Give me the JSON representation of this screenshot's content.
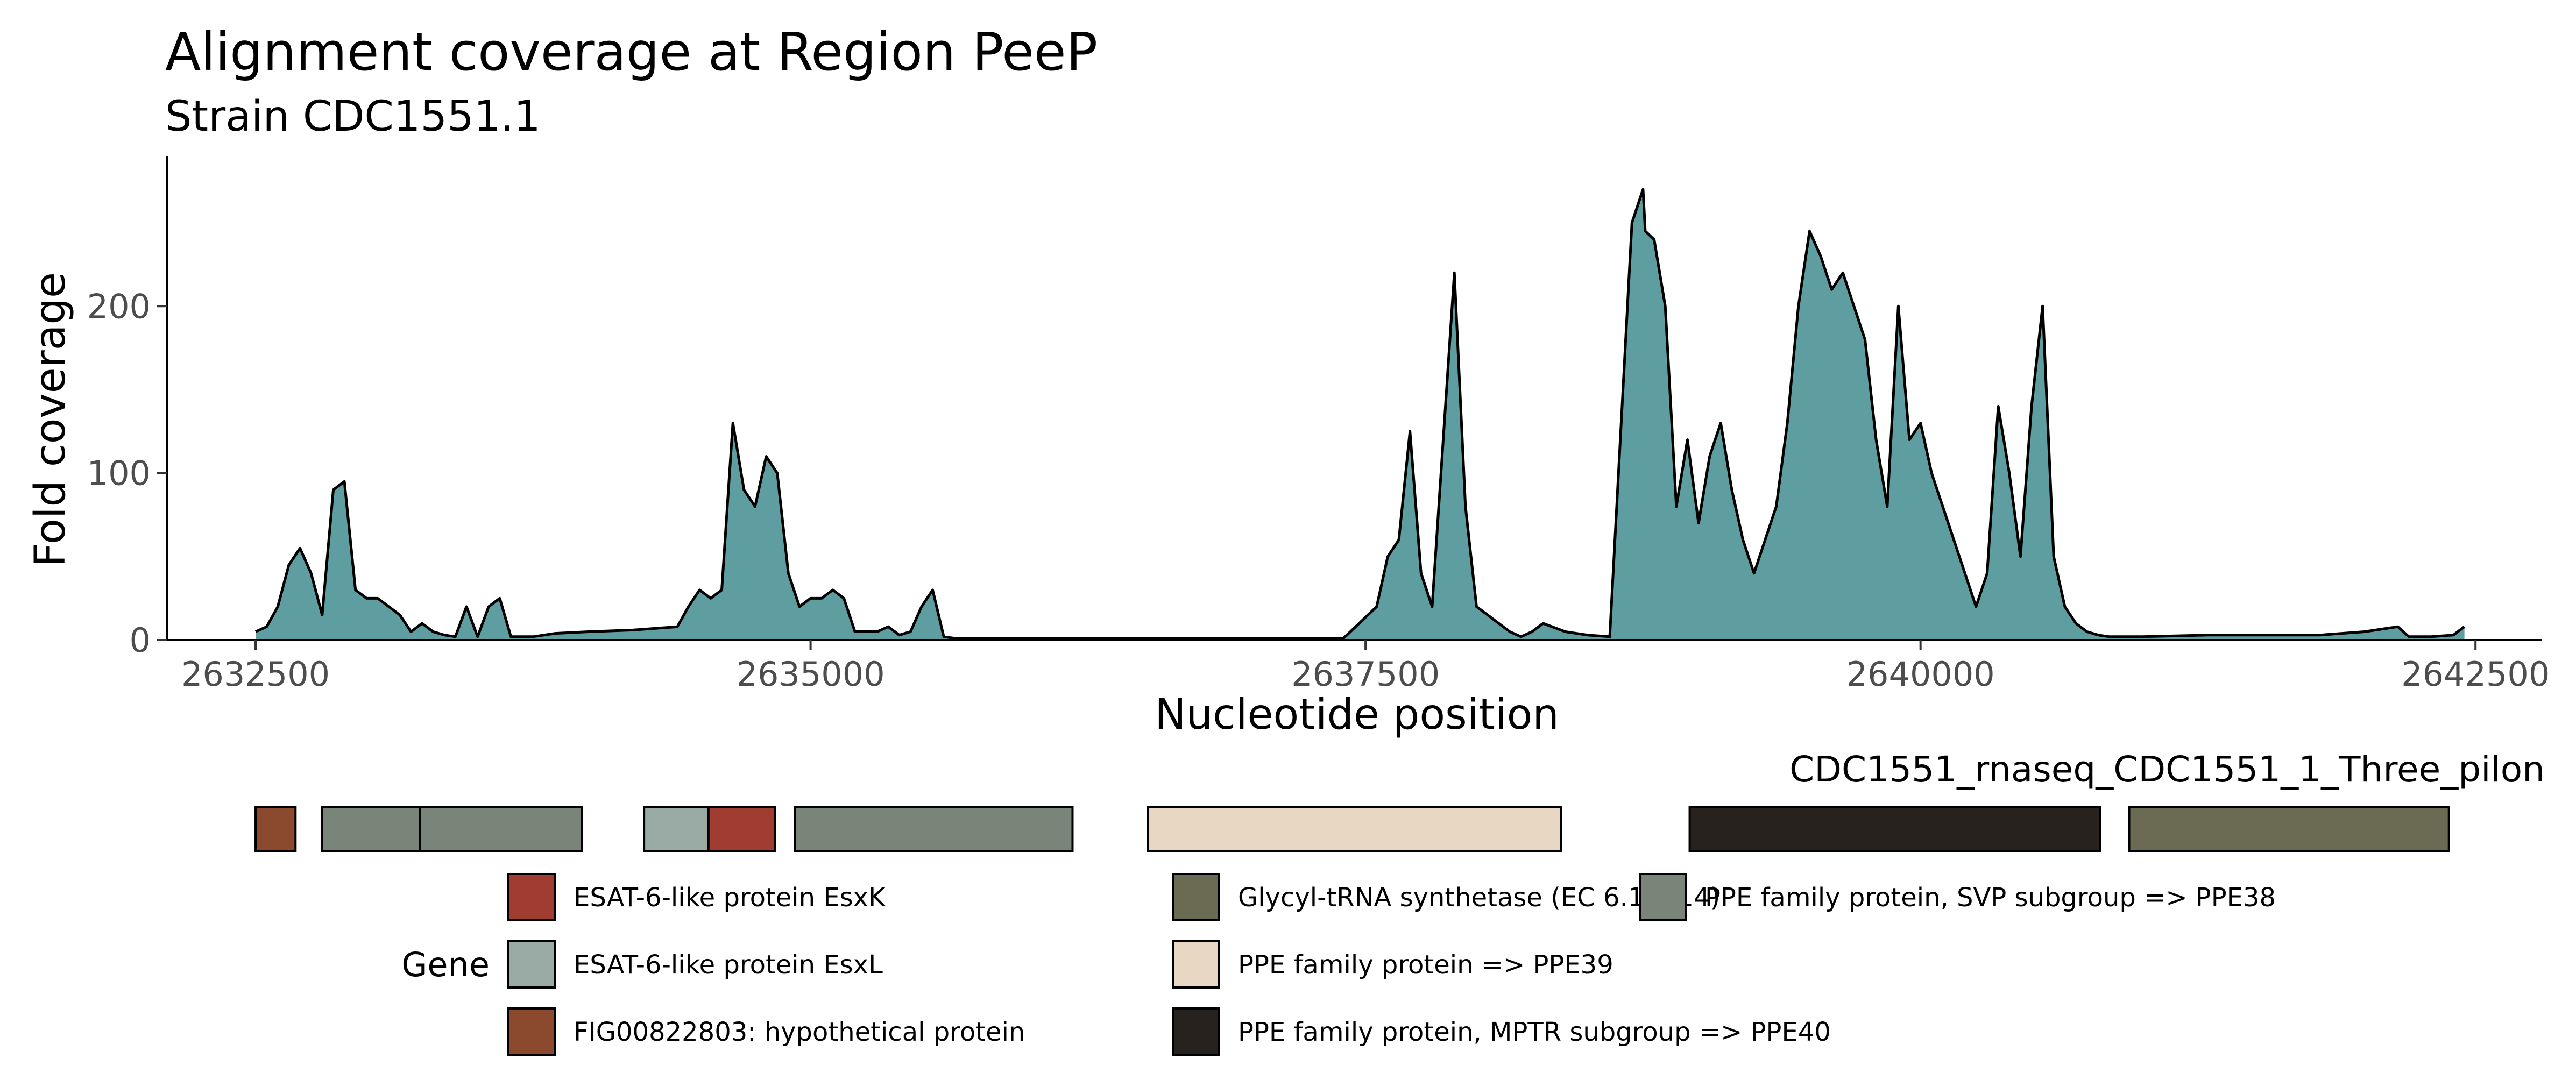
{
  "chart_data": {
    "type": "area",
    "title": "Alignment coverage at Region PeeP",
    "subtitle": "Strain CDC1551.1",
    "xlabel": "Nucleotide position",
    "ylabel": "Fold coverage",
    "xlim": [
      2632100,
      2642800
    ],
    "ylim": [
      0,
      290
    ],
    "x_ticks": [
      2632500,
      2635000,
      2637500,
      2640000,
      2642500
    ],
    "x_tick_labels": [
      "2632500",
      "2635000",
      "2637500",
      "2640000",
      "2642500"
    ],
    "y_ticks": [
      0,
      100,
      200
    ],
    "y_tick_labels": [
      "0",
      "100",
      "200"
    ],
    "grid": false,
    "fill_color": "#5f9ea0",
    "line_color": "#000000",
    "series": [
      {
        "x": [
          2632500,
          2632550,
          2632600,
          2632650,
          2632700,
          2632750,
          2632800,
          2632850,
          2632900,
          2632950,
          2633000,
          2633050,
          2633100,
          2633150,
          2633200,
          2633250,
          2633300,
          2633350,
          2633400,
          2633450,
          2633500,
          2633550,
          2633600,
          2633650,
          2633700,
          2633750,
          2633800,
          2633850,
          2634000,
          2634200,
          2634400,
          2634450,
          2634500,
          2634550,
          2634600,
          2634650,
          2634700,
          2634750,
          2634800,
          2634850,
          2634900,
          2634950,
          2635000,
          2635050,
          2635100,
          2635150,
          2635200,
          2635250,
          2635300,
          2635350,
          2635400,
          2635450,
          2635500,
          2635550,
          2635600,
          2635650,
          2635700,
          2635750,
          2635800,
          2635850,
          2636000,
          2636500,
          2637000,
          2637200,
          2637400,
          2637550,
          2637600,
          2637650,
          2637700,
          2637750,
          2637800,
          2637850,
          2637900,
          2637950,
          2638000,
          2638050,
          2638100,
          2638150,
          2638200,
          2638250,
          2638300,
          2638400,
          2638500,
          2638600,
          2638700,
          2638750,
          2638760,
          2638800,
          2638850,
          2638900,
          2638950,
          2639000,
          2639050,
          2639100,
          2639150,
          2639200,
          2639250,
          2639300,
          2639350,
          2639400,
          2639450,
          2639500,
          2639550,
          2639600,
          2639650,
          2639700,
          2639750,
          2639800,
          2639850,
          2639900,
          2639950,
          2640000,
          2640050,
          2640100,
          2640150,
          2640200,
          2640250,
          2640300,
          2640350,
          2640400,
          2640450,
          2640500,
          2640550,
          2640600,
          2640650,
          2640700,
          2640750,
          2640800,
          2640850,
          2641000,
          2641300,
          2641600,
          2641800,
          2642000,
          2642150,
          2642200,
          2642300,
          2642400,
          2642450
        ],
        "y": [
          5,
          8,
          20,
          45,
          55,
          40,
          15,
          90,
          95,
          30,
          25,
          25,
          20,
          15,
          5,
          10,
          5,
          3,
          2,
          20,
          2,
          20,
          25,
          2,
          2,
          2,
          3,
          4,
          5,
          6,
          8,
          20,
          30,
          25,
          30,
          130,
          90,
          80,
          110,
          100,
          40,
          20,
          25,
          25,
          30,
          25,
          5,
          5,
          5,
          8,
          3,
          5,
          20,
          30,
          2,
          1,
          1,
          1,
          1,
          1,
          1,
          1,
          1,
          1,
          1,
          20,
          50,
          60,
          125,
          40,
          20,
          120,
          220,
          80,
          20,
          15,
          10,
          5,
          2,
          5,
          10,
          5,
          3,
          2,
          250,
          270,
          245,
          240,
          200,
          80,
          120,
          70,
          110,
          130,
          90,
          60,
          40,
          60,
          80,
          130,
          200,
          245,
          230,
          210,
          220,
          200,
          180,
          120,
          80,
          200,
          120,
          130,
          100,
          80,
          60,
          40,
          20,
          40,
          140,
          100,
          50,
          140,
          200,
          50,
          20,
          10,
          5,
          3,
          2,
          2,
          3,
          3,
          3,
          5,
          8,
          2,
          2,
          3,
          8
        ]
      }
    ],
    "track": {
      "label": "CDC1551_rnaseq_CDC1551_1_Three_pilon",
      "genes": [
        {
          "start": 2632500,
          "end": 2632680,
          "name": "FIG00822803: hypothetical protein",
          "color": "#8b4a2e"
        },
        {
          "start": 2632800,
          "end": 2633240,
          "name": "PPE family protein, SVP subgroup => PPE38",
          "color": "#788578"
        },
        {
          "start": 2633240,
          "end": 2633970,
          "name": "PPE family protein, SVP subgroup => PPE38",
          "color": "#788578"
        },
        {
          "start": 2634250,
          "end": 2634540,
          "name": "ESAT-6-like protein EsxL",
          "color": "#9aaaa5"
        },
        {
          "start": 2634540,
          "end": 2634840,
          "name": "ESAT-6-like protein EsxK",
          "color": "#a13d30"
        },
        {
          "start": 2634930,
          "end": 2636180,
          "name": "PPE family protein, SVP subgroup => PPE38",
          "color": "#788578"
        },
        {
          "start": 2636520,
          "end": 2638380,
          "name": "PPE family protein => PPE39",
          "color": "#e8d8c3"
        },
        {
          "start": 2638960,
          "end": 2640810,
          "name": "PPE family protein, MPTR subgroup => PPE40",
          "color": "#28221e"
        },
        {
          "start": 2640940,
          "end": 2642380,
          "name": "Glycyl-tRNA synthetase (EC 6.1.1.14)",
          "color": "#6b6a52"
        }
      ]
    },
    "legend": {
      "title": "Gene",
      "placement": "bottom",
      "entries": [
        {
          "label": "ESAT-6-like protein EsxK",
          "color": "#a13d30"
        },
        {
          "label": "ESAT-6-like protein EsxL",
          "color": "#9aaaa5"
        },
        {
          "label": "FIG00822803: hypothetical protein",
          "color": "#8b4a2e"
        },
        {
          "label": "Glycyl-tRNA synthetase (EC 6.1.1.14)",
          "color": "#6b6a52"
        },
        {
          "label": "PPE family protein => PPE39",
          "color": "#e8d8c3"
        },
        {
          "label": "PPE family protein, MPTR subgroup => PPE40",
          "color": "#28221e"
        },
        {
          "label": "PPE family protein, SVP subgroup => PPE38",
          "color": "#788578"
        }
      ]
    }
  }
}
